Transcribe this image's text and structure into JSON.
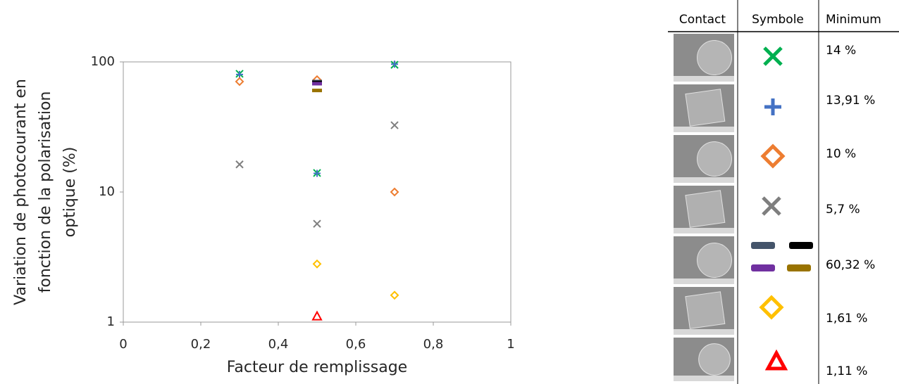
{
  "chart_data": {
    "type": "scatter",
    "xlabel": "Facteur de remplissage",
    "ylabel": [
      "Variation de photocourant en",
      "fonction de la polarisation",
      "optique (%)"
    ],
    "xlim": [
      0,
      1
    ],
    "xticks": [
      0,
      {
        "value": 0.2,
        "label": "0,2"
      },
      {
        "value": 0.4,
        "label": "0,4"
      },
      {
        "value": 0.6,
        "label": "0,6"
      },
      {
        "value": 0.8,
        "label": "0,8"
      },
      1
    ],
    "ylim": [
      1,
      100
    ],
    "yticks": [
      1,
      10,
      100
    ],
    "log_y": true,
    "grid": false,
    "series": [
      {
        "color": "#00b050",
        "marker": "x",
        "x": [
          0.3,
          0.5,
          0.7
        ],
        "values": [
          81,
          14,
          95
        ]
      },
      {
        "color": "#4472c4",
        "marker": "plus",
        "x": [
          0.3,
          0.5,
          0.7
        ],
        "values": [
          80,
          13.91,
          96
        ]
      },
      {
        "color": "#ed7d31",
        "marker": "diamond",
        "x": [
          0.3,
          0.5,
          0.7
        ],
        "values": [
          70.6,
          73,
          10
        ]
      },
      {
        "color": "#7f7f7f",
        "marker": "x",
        "x": [
          0.3,
          0.5,
          0.7
        ],
        "values": [
          16.3,
          5.7,
          32.6
        ]
      },
      {
        "color": "#44546a",
        "marker": "dash",
        "x": [
          0.5
        ],
        "values": [
          70.6
        ]
      },
      {
        "color": "#000000",
        "marker": "dash",
        "x": [
          0.5
        ],
        "values": [
          69.5
        ]
      },
      {
        "color": "#7030a0",
        "marker": "dash",
        "x": [
          0.5
        ],
        "values": [
          68
        ]
      },
      {
        "color": "#997300",
        "marker": "dash",
        "x": [
          0.5
        ],
        "values": [
          60.32
        ]
      },
      {
        "color": "#ffc000",
        "marker": "diamond",
        "x": [
          0.5,
          0.7
        ],
        "values": [
          2.8,
          1.61
        ]
      },
      {
        "color": "#ff0000",
        "marker": "triangle",
        "x": [
          0.5
        ],
        "values": [
          1.11
        ]
      }
    ]
  },
  "table": {
    "header": [
      "Contact",
      "Symbole",
      "Minimum"
    ],
    "minimum": [
      "14 %",
      "13,91 %",
      "10 %",
      "5,7 %",
      "60,32 %",
      "1,61 %",
      "1,11 %"
    ]
  }
}
